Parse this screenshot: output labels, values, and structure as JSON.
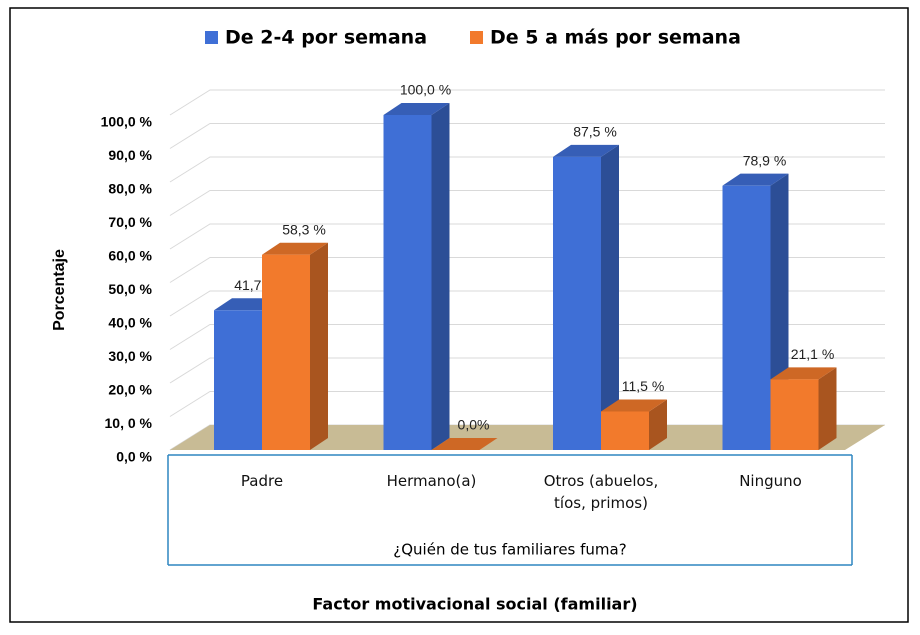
{
  "chart_data": {
    "type": "bar3d",
    "categories": [
      "Padre",
      "Hermano(a)",
      "Otros (abuelos, tíos, primos)",
      "Ninguno"
    ],
    "series": [
      {
        "name": "De 2-4 por semana",
        "color": "#3f6fd6",
        "values": [
          41.7,
          100,
          87.5,
          78.9
        ],
        "value_labels": [
          "41,7 %",
          "100,0 %",
          "87,5 %",
          "78,9 %"
        ]
      },
      {
        "name": "De 5 a más por semana",
        "color": "#f27a2c",
        "values": [
          58.3,
          0,
          11.5,
          21.1
        ],
        "value_labels": [
          "58,3 %",
          "0,0%",
          "11,5 %",
          "21,1 %"
        ]
      }
    ],
    "ylim": [
      0,
      100
    ],
    "yticks": [
      {
        "value": 0,
        "label": "0,0 %"
      },
      {
        "value": 10,
        "label": "10, 0 %"
      },
      {
        "value": 20,
        "label": "20,0 %"
      },
      {
        "value": 30,
        "label": "30,0 %"
      },
      {
        "value": 40,
        "label": "40,0 %"
      },
      {
        "value": 50,
        "label": "50,0 %"
      },
      {
        "value": 60,
        "label": "60,0 %"
      },
      {
        "value": 70,
        "label": "70,0 %"
      },
      {
        "value": 80,
        "label": "80,0 %"
      },
      {
        "value": 90,
        "label": "90,0 %"
      },
      {
        "value": 100,
        "label": "100,0 %"
      }
    ],
    "y_label": "Porcentaje",
    "x_group_label": "¿Quién de tus familiares fuma?",
    "x_label": "Factor motivacional social (familiar)",
    "grid": true,
    "legend": "top"
  }
}
